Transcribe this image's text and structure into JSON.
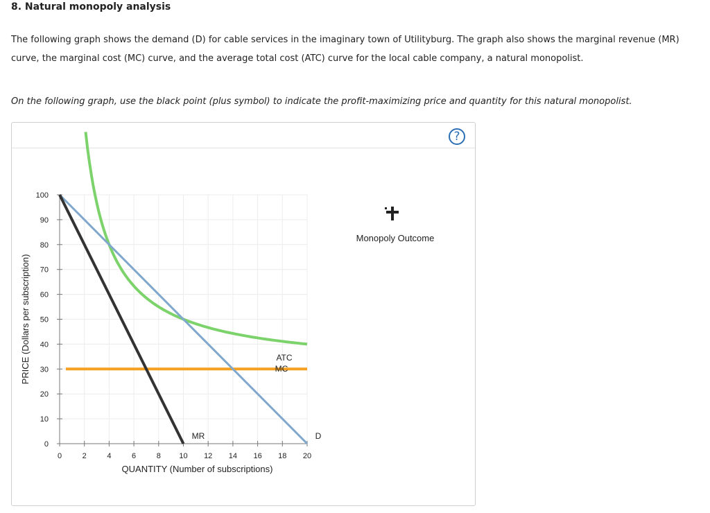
{
  "header": {
    "title": "8. Natural monopoly analysis",
    "description": "The following graph shows the demand (D) for cable services in the imaginary town of Utilityburg. The graph also shows the marginal revenue (MR) curve, the marginal cost (MC) curve, and the average total cost (ATC) curve for the local cable company, a natural monopolist.",
    "instruction": "On the following graph, use the black point (plus symbol) to indicate the profit-maximizing price and quantity for this natural monopolist."
  },
  "panel": {
    "help_symbol": "?"
  },
  "palette": {
    "tool_label": "Monopoly Outcome",
    "tool_icon": "plus-icon",
    "tool_color": "#222222"
  },
  "chart_data": {
    "type": "line",
    "xlabel": "QUANTITY (Number of subscriptions)",
    "ylabel": "PRICE (Dollars per subscription)",
    "xlim": [
      0,
      20
    ],
    "ylim": [
      0,
      100
    ],
    "x_ticks": [
      "0",
      "2",
      "4",
      "6",
      "8",
      "10",
      "12",
      "14",
      "16",
      "18",
      "20"
    ],
    "y_ticks": [
      "0",
      "10",
      "20",
      "30",
      "40",
      "50",
      "60",
      "70",
      "80",
      "90",
      "100"
    ],
    "grid": true,
    "series": [
      {
        "name": "D",
        "color": "#7fa8cc",
        "points": [
          [
            0,
            100
          ],
          [
            20,
            0
          ]
        ]
      },
      {
        "name": "MR",
        "color": "#333333",
        "points": [
          [
            0,
            100
          ],
          [
            10,
            0
          ]
        ]
      },
      {
        "name": "MC",
        "color": "#f5a020",
        "points": [
          [
            0.5,
            30
          ],
          [
            20,
            30
          ]
        ]
      },
      {
        "name": "ATC",
        "color": "#7dd36b",
        "atc_fixed_cost": 200,
        "atc_variable_cost": 30,
        "x_range": [
          2.1,
          20
        ]
      }
    ]
  }
}
